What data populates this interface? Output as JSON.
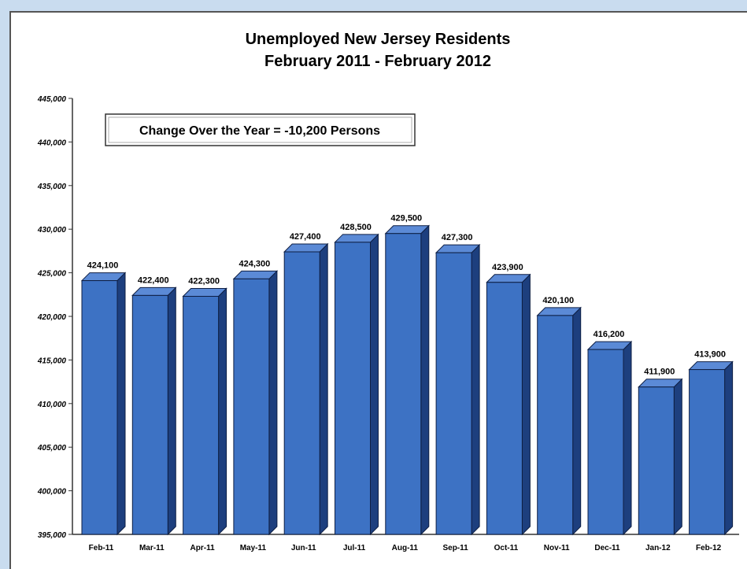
{
  "chart_data": {
    "type": "bar",
    "title": "Unemployed New Jersey Residents",
    "subtitle": "February 2011 - February 2012",
    "annotation": "Change Over the Year = -10,200 Persons",
    "categories": [
      "Feb-11",
      "Mar-11",
      "Apr-11",
      "May-11",
      "Jun-11",
      "Jul-11",
      "Aug-11",
      "Sep-11",
      "Oct-11",
      "Nov-11",
      "Dec-11",
      "Jan-12",
      "Feb-12"
    ],
    "values": [
      424100,
      422400,
      422300,
      424300,
      427400,
      428500,
      429500,
      427300,
      423900,
      420100,
      416200,
      411900,
      413900
    ],
    "data_labels": [
      "424,100",
      "422,400",
      "422,300",
      "424,300",
      "427,400",
      "428,500",
      "429,500",
      "427,300",
      "423,900",
      "420,100",
      "416,200",
      "411,900",
      "413,900"
    ],
    "ylim": [
      395000,
      445000
    ],
    "yticks": [
      395000,
      400000,
      405000,
      410000,
      415000,
      420000,
      425000,
      430000,
      435000,
      440000,
      445000
    ],
    "ytick_labels": [
      "395,000",
      "400,000",
      "405,000",
      "410,000",
      "415,000",
      "420,000",
      "425,000",
      "430,000",
      "435,000",
      "440,000",
      "445,000"
    ],
    "grid": false,
    "style": "3d-bar",
    "colors": {
      "bar_front": "#3d72c4",
      "bar_side": "#1d3f7e",
      "bar_top": "#5b8ad6",
      "background": "#c9dcef"
    }
  }
}
